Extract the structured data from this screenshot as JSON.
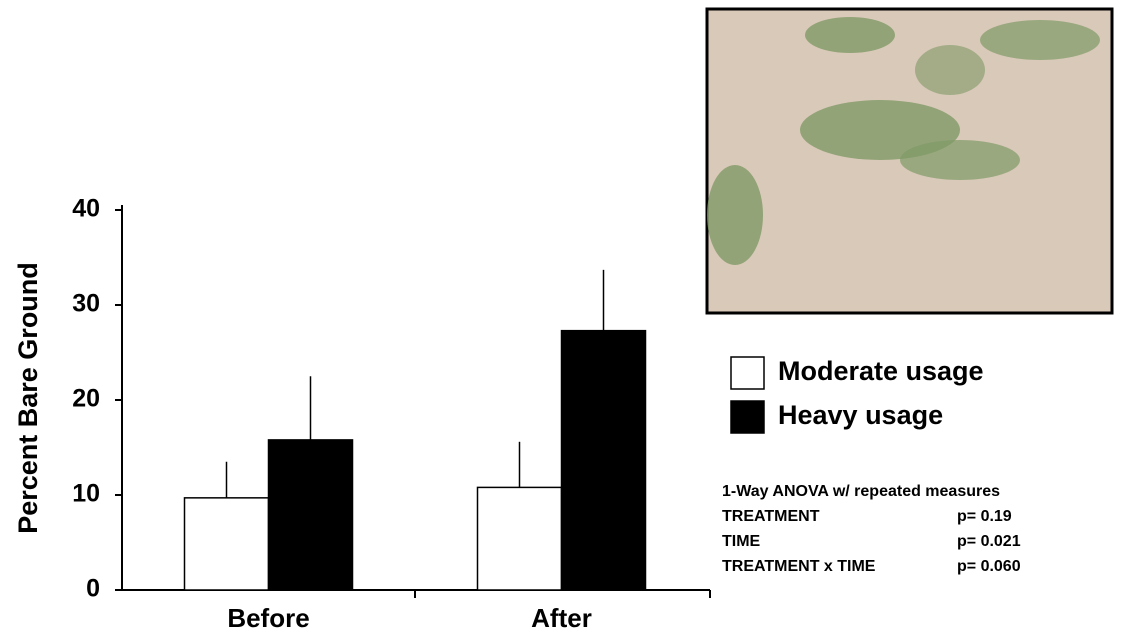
{
  "chart_data": {
    "type": "bar",
    "y_label": "Percent  Bare Ground",
    "categories": [
      "Before",
      "After"
    ],
    "series": [
      {
        "name": "Moderate usage",
        "color": "#ffffff",
        "values": [
          9.7,
          10.8
        ],
        "errors": [
          3.8,
          4.8
        ]
      },
      {
        "name": "Heavy usage",
        "color": "#000000",
        "values": [
          15.8,
          27.3
        ],
        "errors": [
          6.7,
          6.4
        ]
      }
    ],
    "ylim": [
      0,
      40
    ],
    "yticks": [
      0,
      10,
      20,
      30,
      40
    ],
    "anova": {
      "title": "1-Way ANOVA w/ repeated measures",
      "rows": [
        {
          "term": "TREATMENT",
          "p": "p= 0.19"
        },
        {
          "term": "TIME",
          "p": "p= 0.021"
        },
        {
          "term": "TREATMENT x TIME",
          "p": "p= 0.060"
        }
      ]
    }
  }
}
